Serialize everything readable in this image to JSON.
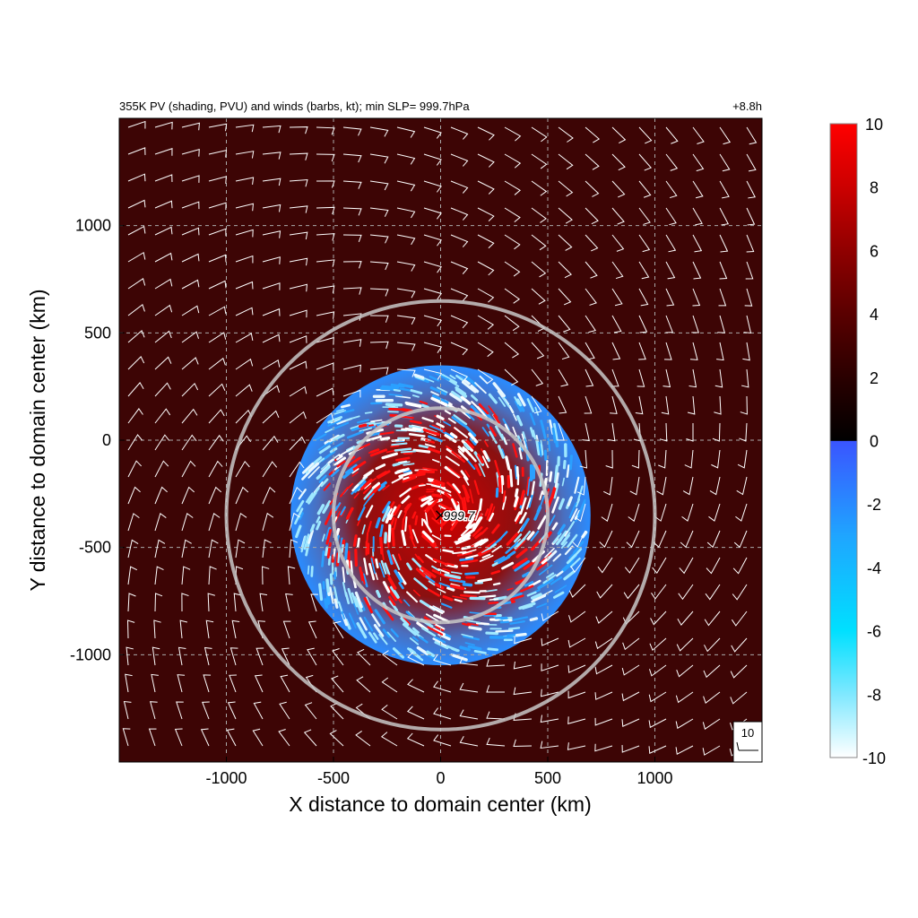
{
  "chart_data": {
    "type": "heatmap",
    "title": "355K PV (shading, PVU) and winds (barbs, kt); min SLP=  999.7hPa",
    "time_label": "+8.8h",
    "xlabel": "X distance to domain center (km)",
    "ylabel": "Y distance to domain center (km)",
    "xlim": [
      -1500,
      1500
    ],
    "ylim": [
      -1500,
      1500
    ],
    "x_ticks": [
      -1000,
      -500,
      0,
      500,
      1000
    ],
    "y_ticks": [
      1000,
      500,
      0,
      -500,
      -1000
    ],
    "grid": "dashed",
    "colorbar": {
      "min": -10,
      "max": 10,
      "ticks": [
        10,
        8,
        6,
        4,
        2,
        0,
        -2,
        -4,
        -6,
        -8,
        -10
      ],
      "colors": [
        "#ffffff",
        "#7fe8ff",
        "#00e0ff",
        "#1fa5ff",
        "#3a55ff",
        "#000000",
        "#2a0000",
        "#5a0000",
        "#900000",
        "#cc0000",
        "#ff0000"
      ]
    },
    "background_pv": 2.5,
    "cyclone_center": {
      "x": 0,
      "y": -350,
      "min_slp_label": "999.7"
    },
    "range_rings_km": [
      500,
      1000
    ],
    "pv_disc_radius_km": 700,
    "wind_barb_reference": {
      "label": "10",
      "value_kt": 10
    }
  }
}
